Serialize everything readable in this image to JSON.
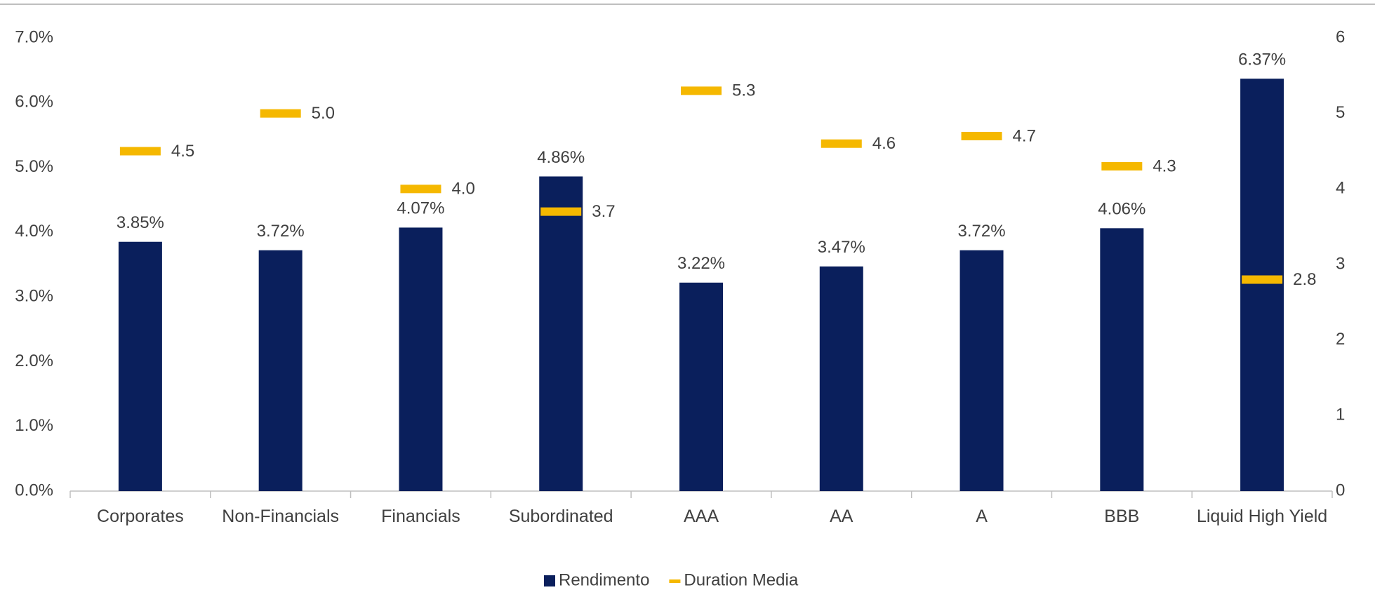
{
  "chart_data": {
    "type": "bar",
    "categories": [
      "Corporates",
      "Non-Financials",
      "Financials",
      "Subordinated",
      "AAA",
      "AA",
      "A",
      "BBB",
      "Liquid High Yield"
    ],
    "series": [
      {
        "name": "Rendimento",
        "color": "#0a1f5c",
        "type": "bar",
        "values": [
          3.85,
          3.72,
          4.07,
          4.86,
          3.22,
          3.47,
          3.72,
          4.06,
          6.37
        ],
        "value_labels": [
          "3.85%",
          "3.72%",
          "4.07%",
          "4.86%",
          "3.22%",
          "3.47%",
          "3.72%",
          "4.06%",
          "6.37%"
        ]
      },
      {
        "name": "Duration Media",
        "color": "#f5b800",
        "type": "marker",
        "axis": "y2",
        "values": [
          4.5,
          5.0,
          4.0,
          3.7,
          5.3,
          4.6,
          4.7,
          4.3,
          2.8
        ],
        "value_labels": [
          "4.5",
          "5.0",
          "4.0",
          "3.7",
          "5.3",
          "4.6",
          "4.7",
          "4.3",
          "2.8"
        ]
      }
    ],
    "ylim": [
      0,
      7
    ],
    "yticks": [
      {
        "value": 0,
        "label": "0.0%"
      },
      {
        "value": 1,
        "label": "1.0%"
      },
      {
        "value": 2,
        "label": "2.0%"
      },
      {
        "value": 3,
        "label": "3.0%"
      },
      {
        "value": 4,
        "label": "4.0%"
      },
      {
        "value": 5,
        "label": "5.0%"
      },
      {
        "value": 6,
        "label": "6.0%"
      },
      {
        "value": 7,
        "label": "7.0%"
      }
    ],
    "y2lim": [
      0,
      6
    ],
    "y2ticks": [
      0,
      1,
      2,
      3,
      4,
      5,
      6
    ],
    "legend": "bottom"
  }
}
